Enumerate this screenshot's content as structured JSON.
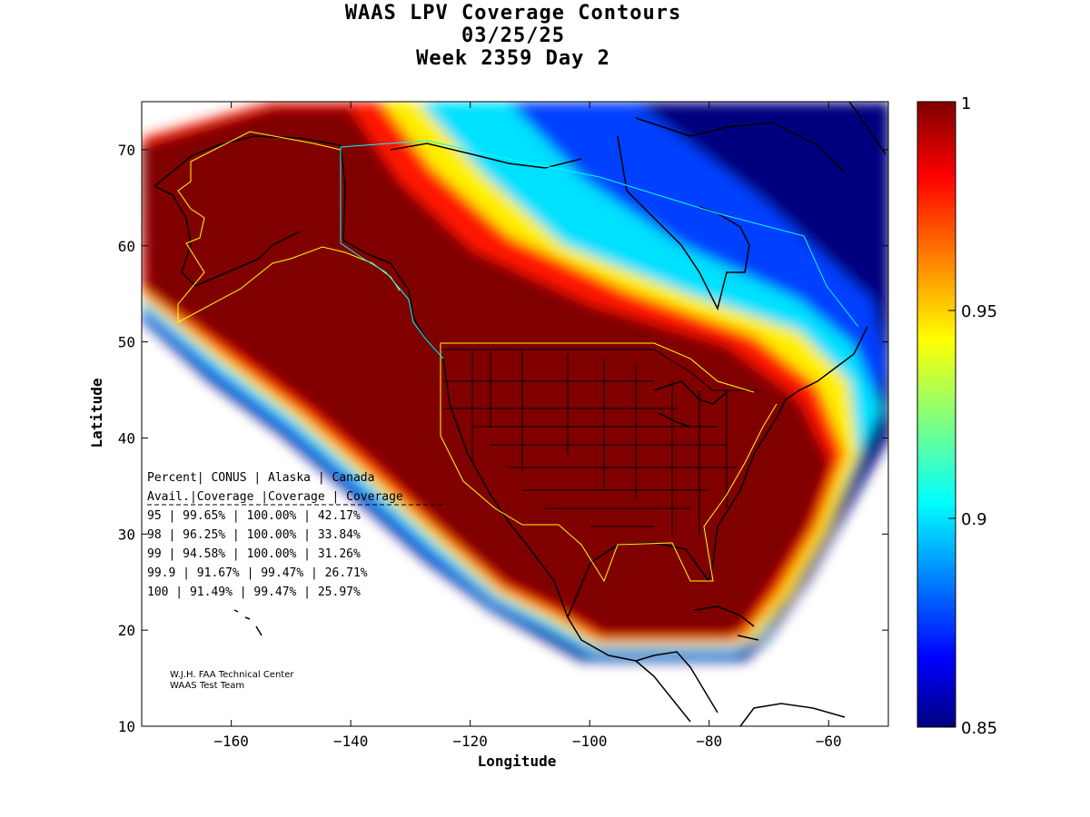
{
  "title_lines": [
    "WAAS LPV Coverage Contours",
    "03/25/25",
    "Week 2359 Day 2"
  ],
  "credit_lines": [
    "W.J.H. FAA Technical Center",
    "WAAS Test Team"
  ],
  "colorbar": {
    "min_label": "0.85",
    "mid_low_label": "0.9",
    "mid_high_label": "0.95",
    "max_label": "1"
  },
  "chart_data": {
    "type": "heatmap",
    "title": "WAAS LPV Coverage Contours",
    "subtitle": "03/25/25 Week 2359 Day 2",
    "xlabel": "Longitude",
    "ylabel": "Latitude",
    "xlim": [
      -175,
      -50
    ],
    "ylim": [
      10,
      75
    ],
    "xticks": [
      -160,
      -140,
      -120,
      -100,
      -80,
      -60
    ],
    "yticks": [
      10,
      20,
      30,
      40,
      50,
      60,
      70
    ],
    "color_scale": {
      "min": 0.85,
      "max": 1,
      "ticks": [
        0.85,
        0.9,
        0.95,
        1
      ],
      "colormap": "jet"
    },
    "coverage_table": {
      "headers": [
        "Percent",
        "CONUS",
        "Alaska",
        "Canada"
      ],
      "subheaders": [
        "Avail.",
        "Coverage",
        "Coverage",
        "Coverage"
      ],
      "rows": [
        [
          "95",
          "99.65%",
          "100.00%",
          "42.17%"
        ],
        [
          "98",
          "96.25%",
          "100.00%",
          "33.84%"
        ],
        [
          "99",
          "94.58%",
          "100.00%",
          "31.26%"
        ],
        [
          "99.9",
          "91.67%",
          "99.47%",
          "26.71%"
        ],
        [
          "100",
          "91.49%",
          "99.47%",
          "25.97%"
        ]
      ]
    }
  }
}
